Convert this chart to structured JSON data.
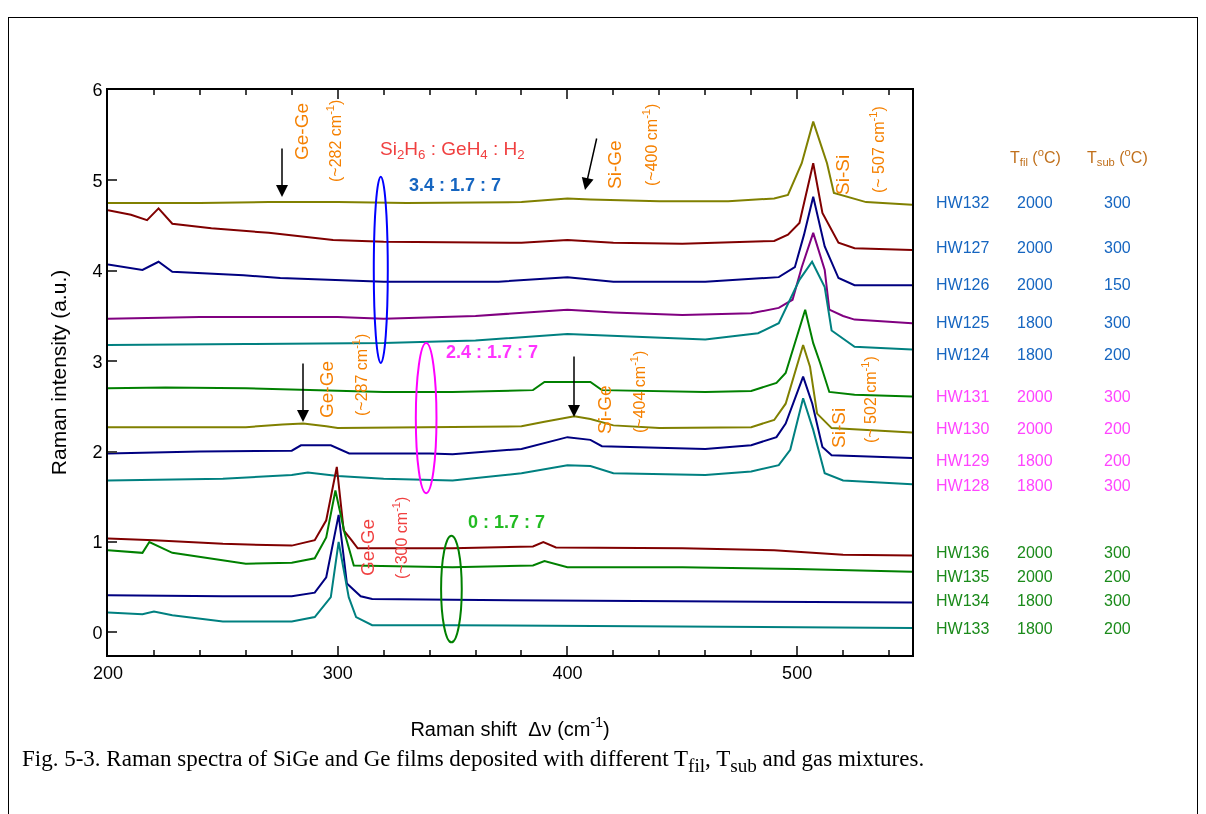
{
  "chart_data": {
    "type": "line",
    "xlabel": "Raman shift  Δν (cm$^{-1}$)",
    "ylabel": "Raman intensity (a.u.)",
    "xlim": [
      200,
      550
    ],
    "ylim": [
      -0.25,
      6
    ],
    "xticks": [
      200,
      {
        "value": 220,
        "label": null
      },
      {
        "value": 240,
        "label": null
      },
      {
        "value": 260,
        "label": null
      },
      {
        "value": 280,
        "label": null
      },
      300,
      {
        "value": 320,
        "label": null
      },
      {
        "value": 340,
        "label": null
      },
      {
        "value": 360,
        "label": null
      },
      {
        "value": 380,
        "label": null
      },
      400,
      {
        "value": 420,
        "label": null
      },
      {
        "value": 440,
        "label": null
      },
      {
        "value": 460,
        "label": null
      },
      {
        "value": 480,
        "label": null
      },
      500,
      {
        "value": 520,
        "label": null
      },
      {
        "value": 540,
        "label": null
      }
    ],
    "yticks": [
      0,
      1,
      2,
      3,
      4,
      5,
      6
    ],
    "grid": false,
    "legend": false,
    "marker": "none",
    "line_style": "solid",
    "series": [
      {
        "name": "HW132",
        "color": "#808000",
        "x": [
          200,
          240,
          270,
          300,
          330,
          380,
          400,
          410,
          440,
          470,
          490,
          496,
          502,
          507,
          513,
          516,
          530,
          550
        ],
        "values": [
          4.75,
          4.75,
          4.76,
          4.76,
          4.75,
          4.76,
          4.8,
          4.79,
          4.77,
          4.77,
          4.8,
          4.84,
          5.19,
          5.65,
          5.19,
          4.86,
          4.76,
          4.73
        ]
      },
      {
        "name": "HW127",
        "color": "#800000",
        "x": [
          200,
          210,
          217,
          222,
          228,
          245,
          270,
          298,
          320,
          380,
          400,
          420,
          450,
          490,
          496,
          501,
          507,
          511,
          518,
          525,
          550
        ],
        "values": [
          4.67,
          4.62,
          4.56,
          4.69,
          4.52,
          4.47,
          4.42,
          4.34,
          4.32,
          4.31,
          4.34,
          4.31,
          4.3,
          4.33,
          4.4,
          4.53,
          5.19,
          4.64,
          4.31,
          4.25,
          4.23
        ]
      },
      {
        "name": "HW126",
        "color": "#000080",
        "x": [
          200,
          215,
          222,
          228,
          259,
          275,
          320,
          370,
          400,
          420,
          460,
          492,
          499,
          503,
          507,
          512,
          518,
          525,
          550
        ],
        "values": [
          4.07,
          4.01,
          4.1,
          3.99,
          3.95,
          3.92,
          3.88,
          3.88,
          3.93,
          3.88,
          3.88,
          3.93,
          4.04,
          4.4,
          4.82,
          4.27,
          3.92,
          3.84,
          3.84
        ]
      },
      {
        "name": "HW125",
        "color": "#800080",
        "x": [
          200,
          240,
          300,
          320,
          360,
          400,
          420,
          450,
          480,
          492,
          498,
          502,
          507,
          512,
          514,
          520,
          525,
          550
        ],
        "values": [
          3.47,
          3.49,
          3.49,
          3.47,
          3.5,
          3.57,
          3.54,
          3.51,
          3.53,
          3.59,
          3.68,
          4.04,
          4.42,
          4.01,
          3.57,
          3.5,
          3.46,
          3.42
        ]
      },
      {
        "name": "HW124",
        "color": "#008080",
        "x": [
          200,
          260,
          320,
          360,
          400,
          430,
          460,
          483,
          492,
          501,
          506.5,
          512,
          515,
          525,
          550
        ],
        "values": [
          3.18,
          3.19,
          3.2,
          3.23,
          3.3,
          3.27,
          3.24,
          3.31,
          3.42,
          3.9,
          4.1,
          3.82,
          3.34,
          3.16,
          3.13
        ]
      },
      {
        "name": "HW131",
        "color": "#008000",
        "x": [
          200,
          225,
          260,
          320,
          350,
          385,
          390,
          410,
          415,
          460,
          480,
          491,
          495,
          503.5,
          507,
          510,
          514,
          525,
          550
        ],
        "values": [
          2.7,
          2.71,
          2.7,
          2.66,
          2.66,
          2.68,
          2.77,
          2.77,
          2.68,
          2.66,
          2.67,
          2.76,
          2.87,
          3.57,
          3.2,
          2.98,
          2.66,
          2.63,
          2.61
        ]
      },
      {
        "name": "HW130",
        "color": "#808000",
        "x": [
          200,
          260,
          276,
          285,
          295,
          300,
          380,
          390,
          403,
          410,
          420,
          440,
          480,
          490,
          495,
          502.6,
          505.6,
          508.7,
          515,
          550
        ],
        "values": [
          2.27,
          2.27,
          2.3,
          2.31,
          2.28,
          2.26,
          2.28,
          2.33,
          2.39,
          2.36,
          2.29,
          2.26,
          2.27,
          2.35,
          2.53,
          3.18,
          2.94,
          2.42,
          2.26,
          2.21
        ]
      },
      {
        "name": "HW129",
        "color": "#000080",
        "x": [
          200,
          240,
          280,
          284,
          297,
          305,
          340,
          350,
          380,
          400,
          410,
          415,
          460,
          480,
          491,
          495,
          502.6,
          506.6,
          511,
          515,
          550
        ],
        "values": [
          1.98,
          2,
          2.01,
          2.07,
          2.07,
          1.98,
          1.98,
          1.97,
          2.03,
          2.16,
          2.13,
          2.06,
          2.03,
          2.07,
          2.16,
          2.31,
          2.83,
          2.53,
          2.05,
          1.96,
          1.93
        ]
      },
      {
        "name": "HW128",
        "color": "#008080",
        "x": [
          200,
          250,
          280,
          287,
          300,
          320,
          350,
          380,
          400,
          410,
          420,
          460,
          480,
          492,
          497,
          502.6,
          507,
          512,
          520,
          550
        ],
        "values": [
          1.68,
          1.7,
          1.74,
          1.77,
          1.73,
          1.7,
          1.68,
          1.76,
          1.85,
          1.84,
          1.76,
          1.74,
          1.78,
          1.85,
          2.02,
          2.59,
          2.24,
          1.76,
          1.68,
          1.64
        ]
      },
      {
        "name": "HW136",
        "color": "#800000",
        "x": [
          200,
          220,
          250,
          280,
          290,
          295,
          299.6,
          302.6,
          306,
          308.7,
          350,
          385,
          389.5,
          395,
          450,
          490,
          520,
          550
        ],
        "values": [
          1.04,
          1.02,
          0.98,
          0.96,
          1.02,
          1.24,
          1.83,
          1.13,
          1.02,
          0.93,
          0.93,
          0.95,
          1,
          0.94,
          0.93,
          0.91,
          0.86,
          0.85
        ]
      },
      {
        "name": "HW135",
        "color": "#008000",
        "x": [
          200,
          215,
          218,
          228,
          260,
          280,
          290,
          295,
          299,
          303,
          307,
          350,
          385,
          390,
          400,
          450,
          500,
          550
        ],
        "values": [
          0.91,
          0.88,
          1,
          0.88,
          0.76,
          0.77,
          0.82,
          1.05,
          1.57,
          1.1,
          0.74,
          0.72,
          0.74,
          0.79,
          0.72,
          0.72,
          0.7,
          0.67
        ]
      },
      {
        "name": "HW134",
        "color": "#000080",
        "x": [
          200,
          250,
          280,
          290,
          295,
          300.4,
          304,
          310,
          315,
          350,
          550
        ],
        "values": [
          0.41,
          0.4,
          0.4,
          0.44,
          0.61,
          1.3,
          0.54,
          0.4,
          0.37,
          0.36,
          0.33
        ]
      },
      {
        "name": "HW133",
        "color": "#008080",
        "x": [
          200,
          215,
          220,
          228,
          250,
          280,
          290,
          297,
          300.4,
          304.8,
          308,
          315,
          350,
          550
        ],
        "values": [
          0.22,
          0.2,
          0.23,
          0.19,
          0.12,
          0.12,
          0.17,
          0.39,
          1,
          0.39,
          0.17,
          0.08,
          0.08,
          0.05
        ]
      }
    ],
    "annotations": [
      "Si$_{2}$H$_{6}$ : GeH$_{4}$ : H$_{2}$",
      "3.4 : 1.7 : 7",
      "2.4 : 1.7 : 7",
      "0 : 1.7 : 7",
      "Ge-Ge",
      "(~282 cm$^{-1}$)",
      "Si-Ge",
      "(~400 cm$^{-1}$)",
      "Si-Si",
      "(~ 507 cm$^{-1}$)",
      "Ge-Ge",
      "(~287 cm$^{-1}$)",
      "Si-Ge",
      "(~404 cm$^{-1}$)",
      "Si-Si",
      "(~ 502 cm$^{-1}$)",
      "Ge-Ge",
      "(~300 cm$^{-1}$)",
      "T$_{fil}$ ($^{o}$C)",
      "T$_{sub}$ ($^{o}$C)",
      "2000",
      "300",
      "2000",
      "300",
      "2000",
      "150",
      "1800",
      "300",
      "1800",
      "200",
      "2000",
      "300",
      "2000",
      "200",
      "1800",
      "200",
      "1800",
      "300",
      "2000",
      "300",
      "2000",
      "200",
      "1800",
      "300",
      "1800",
      "200",
      "Fig. 5-3.  Raman spectra of SiGe and Ge films deposited with different T$_{fil}$, T$_{sub}$ and gas mixtures."
    ]
  }
}
